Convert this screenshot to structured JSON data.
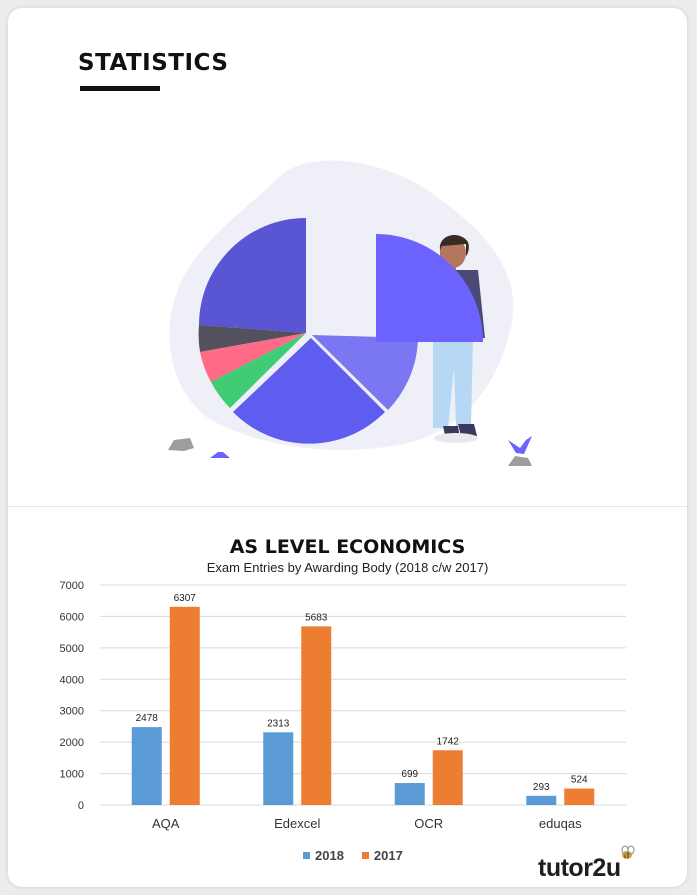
{
  "header": {
    "title": "STATISTICS"
  },
  "chart": {
    "title": "AS LEVEL ECONOMICS",
    "subtitle": "Exam Entries by Awarding Body (2018 c/w 2017)"
  },
  "chart_data": {
    "type": "bar",
    "title": "AS LEVEL ECONOMICS",
    "subtitle": "Exam Entries by Awarding Body (2018 c/w 2017)",
    "categories": [
      "AQA",
      "Edexcel",
      "OCR",
      "eduqas"
    ],
    "series": [
      {
        "name": "2018",
        "values": [
          2478,
          2313,
          699,
          293
        ],
        "color": "#5b9bd5"
      },
      {
        "name": "2017",
        "values": [
          6307,
          5683,
          1742,
          524
        ],
        "color": "#ed7d31"
      }
    ],
    "ylim": [
      0,
      7000
    ],
    "yticks": [
      0,
      1000,
      2000,
      3000,
      4000,
      5000,
      6000,
      7000
    ],
    "xlabel": "",
    "ylabel": "",
    "grid": true,
    "legend": "bottom"
  },
  "branding": {
    "logo": "tutor2u"
  }
}
